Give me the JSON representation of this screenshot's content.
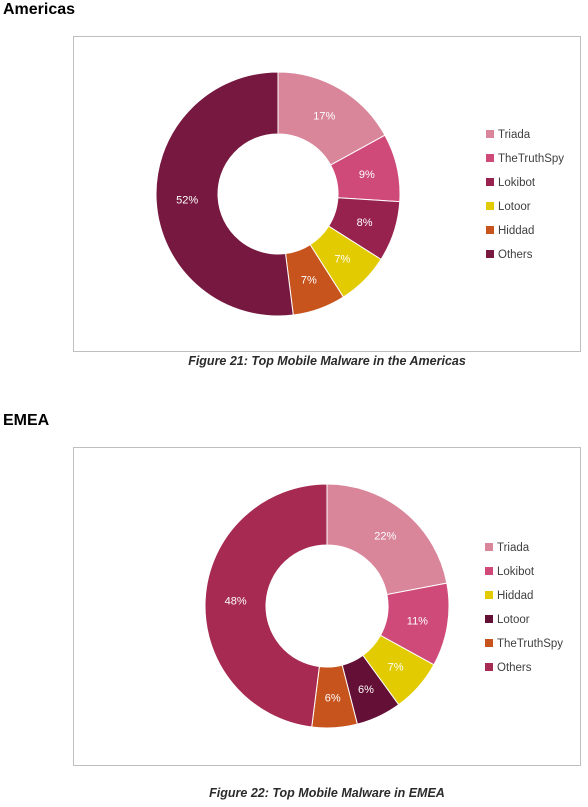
{
  "sections": [
    {
      "title": "Americas",
      "caption": "Figure 21: Top Mobile Malware in the Americas"
    },
    {
      "title": "EMEA",
      "caption": "Figure 22: Top Mobile Malware in EMEA"
    }
  ],
  "chart_data": [
    {
      "type": "pie",
      "donut": true,
      "legend_position": "right",
      "categories": [
        "Triada",
        "TheTruthSpy",
        "Lokibot",
        "Lotoor",
        "Hiddad",
        "Others"
      ],
      "values": [
        17,
        9,
        8,
        7,
        7,
        52
      ],
      "data_labels": [
        "17%",
        "9%",
        "8%",
        "7%",
        "7%",
        "52%"
      ],
      "colors": [
        "#D9869B",
        "#CF4A79",
        "#97224E",
        "#E2CB00",
        "#C7541C",
        "#76183F"
      ],
      "label_colors": [
        "#ffffff",
        "#ffffff",
        "#ffffff",
        "#ffffff",
        "#ffffff",
        "#ffffff"
      ]
    },
    {
      "type": "pie",
      "donut": true,
      "legend_position": "right",
      "categories": [
        "Triada",
        "Lokibot",
        "Hiddad",
        "Lotoor",
        "TheTruthSpy",
        "Others"
      ],
      "values": [
        22,
        11,
        7,
        6,
        6,
        48
      ],
      "data_labels": [
        "22%",
        "11%",
        "7%",
        "6%",
        "6%",
        "48%"
      ],
      "colors": [
        "#D9869B",
        "#CF4A79",
        "#E2CB00",
        "#640F35",
        "#C7541C",
        "#A62A52"
      ],
      "label_colors": [
        "#ffffff",
        "#ffffff",
        "#ffffff",
        "#ffffff",
        "#ffffff",
        "#ffffff"
      ]
    }
  ]
}
